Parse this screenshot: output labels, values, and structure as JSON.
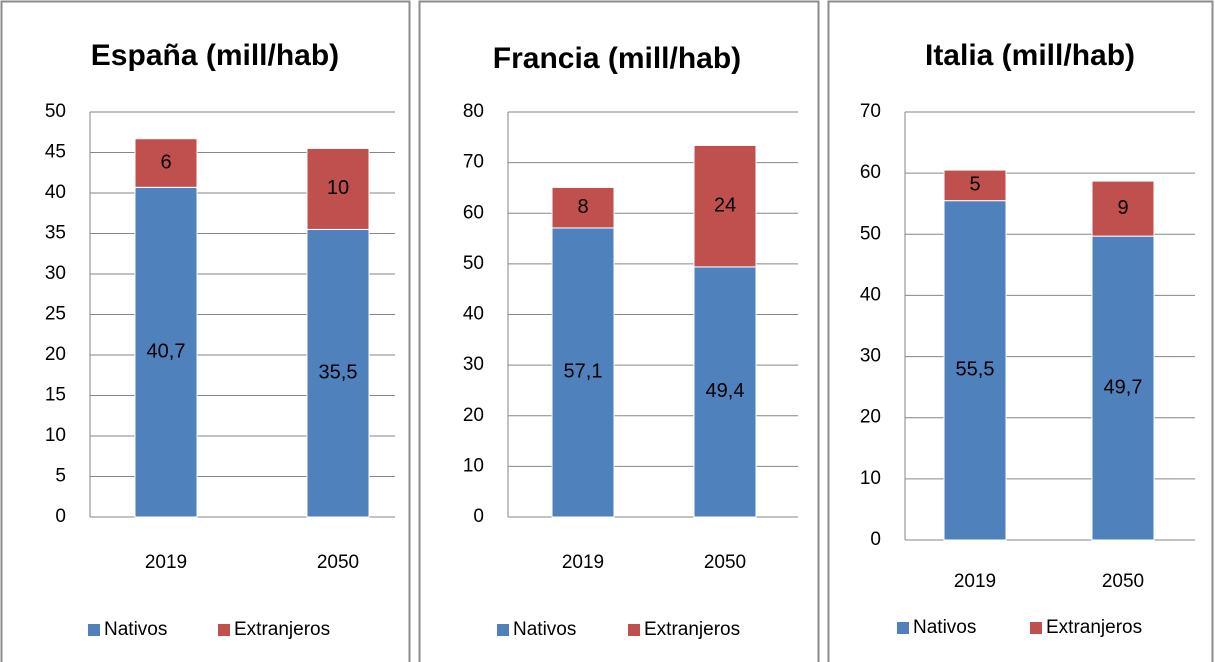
{
  "chart_data": [
    {
      "type": "bar",
      "title": "España (mill/hab)",
      "categories": [
        "2019",
        "2050"
      ],
      "series": [
        {
          "name": "Nativos",
          "color": "#4f81bd",
          "values": [
            40.7,
            35.5
          ],
          "value_labels": [
            "40,7",
            "35,5"
          ]
        },
        {
          "name": "Extranjeros",
          "color": "#c0504d",
          "values": [
            6,
            10
          ]
        }
      ],
      "ylim": [
        0,
        50
      ],
      "yticks": [
        0,
        5,
        10,
        15,
        20,
        25,
        30,
        35,
        40,
        45,
        50
      ],
      "grid": true,
      "stacked": true,
      "legend": "bottom"
    },
    {
      "type": "bar",
      "title": "Francia (mill/hab)",
      "categories": [
        "2019",
        "2050"
      ],
      "series": [
        {
          "name": "Nativos",
          "color": "#4f81bd",
          "values": [
            57.1,
            49.4
          ],
          "value_labels": [
            "57,1",
            "49,4"
          ]
        },
        {
          "name": "Extranjeros",
          "color": "#c0504d",
          "values": [
            8,
            24
          ]
        }
      ],
      "ylim": [
        0,
        80
      ],
      "yticks": [
        0,
        10,
        20,
        30,
        40,
        50,
        60,
        70,
        80
      ],
      "grid": true,
      "stacked": true,
      "legend": "bottom"
    },
    {
      "type": "bar",
      "title": "Italia   (mill/hab)",
      "categories": [
        "2019",
        "2050"
      ],
      "series": [
        {
          "name": "Nativos",
          "color": "#4f81bd",
          "values": [
            55.5,
            49.7
          ],
          "value_labels": [
            "55,5",
            "49,7"
          ]
        },
        {
          "name": "Extranjeros",
          "color": "#c0504d",
          "values": [
            5,
            9
          ]
        }
      ],
      "ylim": [
        0,
        70
      ],
      "yticks": [
        0,
        10,
        20,
        30,
        40,
        50,
        60,
        70
      ],
      "grid": true,
      "stacked": true,
      "legend": "bottom"
    }
  ]
}
